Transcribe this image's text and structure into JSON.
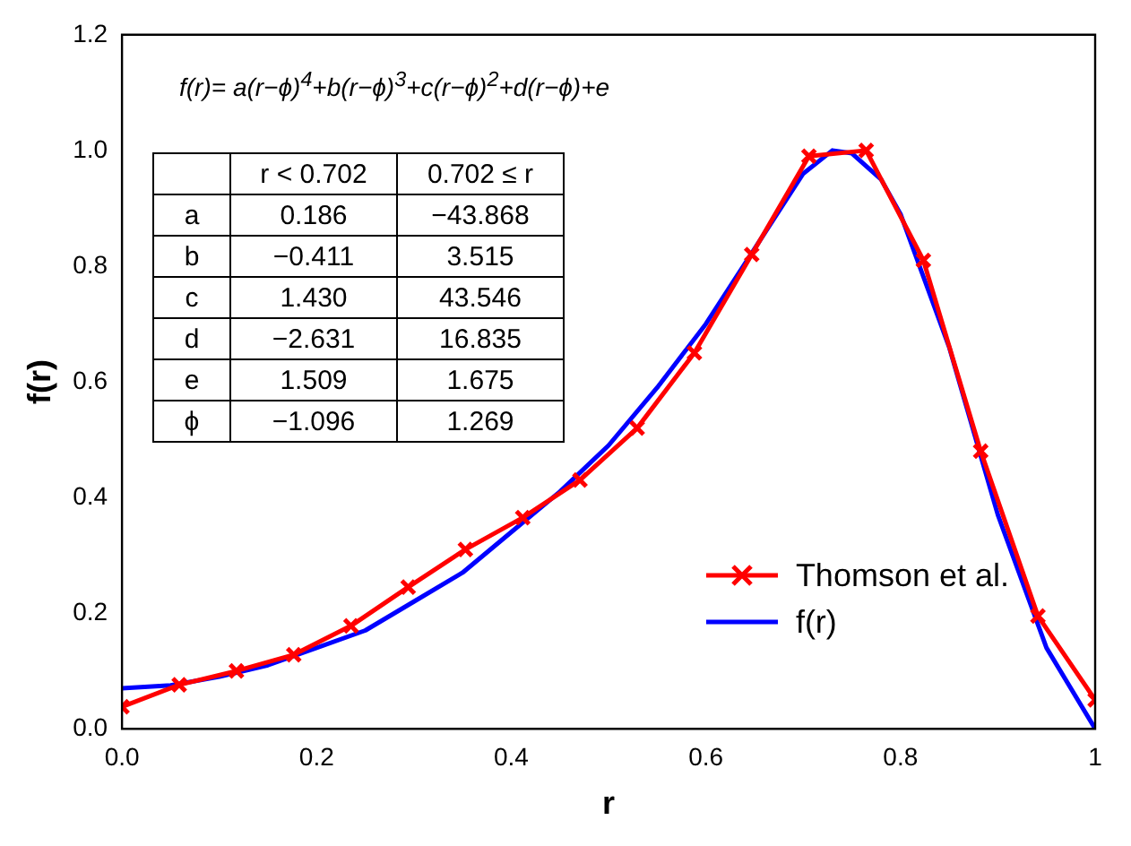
{
  "chart_data": {
    "type": "line",
    "xlabel": "r",
    "ylabel": "f(r)",
    "xlim": [
      0,
      1
    ],
    "xticks": [
      {
        "value": 0,
        "label": "0.0"
      },
      {
        "value": 0.2,
        "label": "0.2"
      },
      {
        "value": 0.4,
        "label": "0.4"
      },
      {
        "value": 0.6,
        "label": "0.6"
      },
      {
        "value": 0.8,
        "label": "0.8"
      },
      {
        "value": 1,
        "label": "1"
      }
    ],
    "ylim": [
      0,
      1.2
    ],
    "yticks": [
      {
        "value": 0,
        "label": "0.0"
      },
      {
        "value": 0.2,
        "label": "0.2"
      },
      {
        "value": 0.4,
        "label": "0.4"
      },
      {
        "value": 0.6,
        "label": "0.6"
      },
      {
        "value": 0.8,
        "label": "0.8"
      },
      {
        "value": 1,
        "label": "1.0"
      },
      {
        "value": 1.2,
        "label": "1.2"
      }
    ],
    "grid": false,
    "legend": "right",
    "line_style": "solid",
    "series": [
      {
        "name": "Thomson et al.",
        "color": "#ff0000",
        "marker": "cross",
        "x": [
          0,
          0.0588,
          0.1176,
          0.1765,
          0.2353,
          0.2941,
          0.3529,
          0.4118,
          0.4706,
          0.5294,
          0.5882,
          0.6471,
          0.7059,
          0.7647,
          0.8235,
          0.8824,
          0.9412,
          1
        ],
        "values": [
          0.038,
          0.076,
          0.1,
          0.128,
          0.178,
          0.245,
          0.31,
          0.365,
          0.43,
          0.52,
          0.65,
          0.82,
          0.99,
          1.0,
          0.81,
          0.48,
          0.195,
          0.05
        ]
      },
      {
        "name": "f(r)",
        "color": "#0000ff",
        "marker": "none",
        "x": [
          0,
          0.05,
          0.1,
          0.15,
          0.2,
          0.25,
          0.3,
          0.35,
          0.4,
          0.45,
          0.5,
          0.55,
          0.6,
          0.65,
          0.7,
          0.73,
          0.75,
          0.78,
          0.8,
          0.85,
          0.9,
          0.95,
          1
        ],
        "values": [
          0.07,
          0.075,
          0.09,
          0.11,
          0.14,
          0.17,
          0.22,
          0.27,
          0.34,
          0.41,
          0.49,
          0.59,
          0.7,
          0.83,
          0.96,
          1.0,
          0.995,
          0.95,
          0.89,
          0.66,
          0.37,
          0.14,
          0
        ]
      }
    ],
    "annotations": [
      "f(r)= a(r−ϕ)$^{4}$+b(r−ϕ)$^{3}$+c(r−ϕ)$^{2}$+d(r−ϕ)+e",
      "\tr < 0.702\t0.702 ≤ r",
      "a\t0.186\t−43.868",
      "b\t−0.411\t3.515",
      "c\t1.430\t43.546",
      "d\t−2.631\t16.835",
      "e\t1.509\t1.675",
      "ϕ\t−1.096\t1.269"
    ]
  }
}
